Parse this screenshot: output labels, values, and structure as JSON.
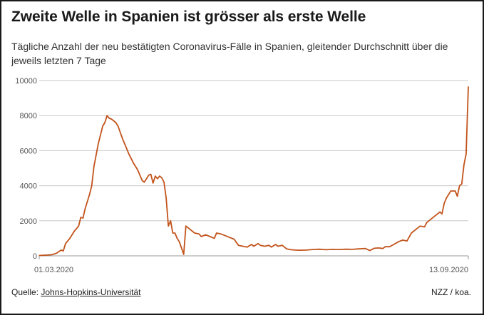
{
  "title": "Zweite Welle in Spanien ist grösser als erste Welle",
  "subtitle": "Tägliche Anzahl der neu bestätigten Coronavirus-Fälle in Spanien, gleitender Durchschnitt über die jeweils letzten 7 Tage",
  "source_prefix": "Quelle: ",
  "source_link": "Johns-Hopkins-Universität",
  "credit": "NZZ / koa.",
  "colors": {
    "line": "#c2531b",
    "grid": "#c8c8c8",
    "tick": "#555555",
    "text": "#1a1a1a"
  },
  "chart_data": {
    "type": "line",
    "title": "Zweite Welle in Spanien ist grösser als erste Welle",
    "xlabel": "",
    "ylabel": "",
    "xlim": [
      "2020-03-01",
      "2020-09-13"
    ],
    "ylim": [
      0,
      10000
    ],
    "yticks": [
      0,
      2000,
      4000,
      6000,
      8000,
      10000
    ],
    "ytick_labels": [
      "0",
      "2000",
      "4000",
      "6000",
      "8000",
      "10000"
    ],
    "xtick_labels": [
      "01.03.2020",
      "13.09.2020"
    ],
    "grid": true,
    "series": [
      {
        "points": [
          [
            "2020-03-01",
            20
          ],
          [
            "2020-03-04",
            40
          ],
          [
            "2020-03-07",
            70
          ],
          [
            "2020-03-09",
            160
          ],
          [
            "2020-03-11",
            330
          ],
          [
            "2020-03-12",
            280
          ],
          [
            "2020-03-13",
            700
          ],
          [
            "2020-03-15",
            1000
          ],
          [
            "2020-03-17",
            1400
          ],
          [
            "2020-03-19",
            1700
          ],
          [
            "2020-03-20",
            2200
          ],
          [
            "2020-03-21",
            2150
          ],
          [
            "2020-03-22",
            2700
          ],
          [
            "2020-03-24",
            3500
          ],
          [
            "2020-03-25",
            4000
          ],
          [
            "2020-03-26",
            5100
          ],
          [
            "2020-03-28",
            6400
          ],
          [
            "2020-03-29",
            6900
          ],
          [
            "2020-03-30",
            7400
          ],
          [
            "2020-03-31",
            7600
          ],
          [
            "2020-04-01",
            8000
          ],
          [
            "2020-04-02",
            7850
          ],
          [
            "2020-04-03",
            7800
          ],
          [
            "2020-04-05",
            7600
          ],
          [
            "2020-04-06",
            7400
          ],
          [
            "2020-04-08",
            6700
          ],
          [
            "2020-04-09",
            6400
          ],
          [
            "2020-04-11",
            5800
          ],
          [
            "2020-04-13",
            5300
          ],
          [
            "2020-04-15",
            4900
          ],
          [
            "2020-04-17",
            4300
          ],
          [
            "2020-04-18",
            4200
          ],
          [
            "2020-04-20",
            4600
          ],
          [
            "2020-04-21",
            4650
          ],
          [
            "2020-04-22",
            4150
          ],
          [
            "2020-04-23",
            4550
          ],
          [
            "2020-04-24",
            4400
          ],
          [
            "2020-04-25",
            4550
          ],
          [
            "2020-04-26",
            4450
          ],
          [
            "2020-04-27",
            4200
          ],
          [
            "2020-04-28",
            3300
          ],
          [
            "2020-04-29",
            1700
          ],
          [
            "2020-04-30",
            2000
          ],
          [
            "2020-05-01",
            1300
          ],
          [
            "2020-05-02",
            1300
          ],
          [
            "2020-05-03",
            1000
          ],
          [
            "2020-05-04",
            800
          ],
          [
            "2020-05-05",
            450
          ],
          [
            "2020-05-06",
            80
          ],
          [
            "2020-05-07",
            1700
          ],
          [
            "2020-05-08",
            1600
          ],
          [
            "2020-05-09",
            1500
          ],
          [
            "2020-05-11",
            1300
          ],
          [
            "2020-05-13",
            1250
          ],
          [
            "2020-05-14",
            1100
          ],
          [
            "2020-05-16",
            1200
          ],
          [
            "2020-05-18",
            1100
          ],
          [
            "2020-05-20",
            1000
          ],
          [
            "2020-05-21",
            1300
          ],
          [
            "2020-05-23",
            1250
          ],
          [
            "2020-05-25",
            1150
          ],
          [
            "2020-05-27",
            1050
          ],
          [
            "2020-05-29",
            950
          ],
          [
            "2020-05-31",
            600
          ],
          [
            "2020-06-02",
            550
          ],
          [
            "2020-06-04",
            500
          ],
          [
            "2020-06-06",
            650
          ],
          [
            "2020-06-07",
            550
          ],
          [
            "2020-06-09",
            700
          ],
          [
            "2020-06-10",
            600
          ],
          [
            "2020-06-12",
            550
          ],
          [
            "2020-06-14",
            600
          ],
          [
            "2020-06-15",
            500
          ],
          [
            "2020-06-17",
            650
          ],
          [
            "2020-06-18",
            550
          ],
          [
            "2020-06-20",
            600
          ],
          [
            "2020-06-22",
            400
          ],
          [
            "2020-06-24",
            350
          ],
          [
            "2020-06-26",
            330
          ],
          [
            "2020-06-28",
            320
          ],
          [
            "2020-07-01",
            330
          ],
          [
            "2020-07-04",
            360
          ],
          [
            "2020-07-07",
            380
          ],
          [
            "2020-07-10",
            350
          ],
          [
            "2020-07-13",
            370
          ],
          [
            "2020-07-16",
            360
          ],
          [
            "2020-07-19",
            380
          ],
          [
            "2020-07-22",
            370
          ],
          [
            "2020-07-25",
            400
          ],
          [
            "2020-07-28",
            420
          ],
          [
            "2020-07-30",
            300
          ],
          [
            "2020-08-01",
            430
          ],
          [
            "2020-08-03",
            450
          ],
          [
            "2020-08-05",
            420
          ],
          [
            "2020-08-06",
            520
          ],
          [
            "2020-08-08",
            520
          ],
          [
            "2020-08-10",
            650
          ],
          [
            "2020-08-12",
            800
          ],
          [
            "2020-08-14",
            900
          ],
          [
            "2020-08-16",
            850
          ],
          [
            "2020-08-18",
            1300
          ],
          [
            "2020-08-20",
            1500
          ],
          [
            "2020-08-22",
            1700
          ],
          [
            "2020-08-24",
            1650
          ],
          [
            "2020-08-25",
            1900
          ],
          [
            "2020-08-27",
            2100
          ],
          [
            "2020-08-29",
            2300
          ],
          [
            "2020-08-31",
            2500
          ],
          [
            "2020-09-01",
            2400
          ],
          [
            "2020-09-02",
            3000
          ],
          [
            "2020-09-03",
            3300
          ],
          [
            "2020-09-05",
            3700
          ],
          [
            "2020-09-07",
            3700
          ],
          [
            "2020-09-08",
            3400
          ],
          [
            "2020-09-09",
            4000
          ],
          [
            "2020-09-10",
            4100
          ],
          [
            "2020-09-11",
            5200
          ],
          [
            "2020-09-12",
            5800
          ],
          [
            "2020-09-13",
            9650
          ]
        ]
      }
    ]
  }
}
